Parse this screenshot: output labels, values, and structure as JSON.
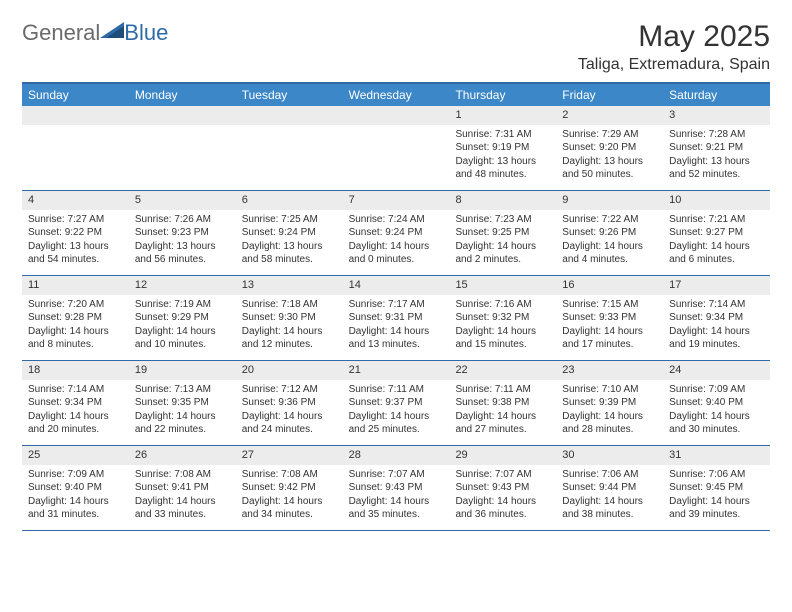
{
  "logo": {
    "general": "General",
    "blue": "Blue"
  },
  "title": "May 2025",
  "location": "Taliga, Extremadura, Spain",
  "colors": {
    "header_bg": "#3b87c8",
    "border": "#2f6aa8",
    "daynum_bg": "#ececec",
    "text": "#333333",
    "logo_gray": "#6b6b6b",
    "logo_blue": "#2f6aa8"
  },
  "daysOfWeek": [
    "Sunday",
    "Monday",
    "Tuesday",
    "Wednesday",
    "Thursday",
    "Friday",
    "Saturday"
  ],
  "weeks": [
    [
      {
        "n": "",
        "sr": "",
        "ss": "",
        "dl1": "",
        "dl2": ""
      },
      {
        "n": "",
        "sr": "",
        "ss": "",
        "dl1": "",
        "dl2": ""
      },
      {
        "n": "",
        "sr": "",
        "ss": "",
        "dl1": "",
        "dl2": ""
      },
      {
        "n": "",
        "sr": "",
        "ss": "",
        "dl1": "",
        "dl2": ""
      },
      {
        "n": "1",
        "sr": "Sunrise: 7:31 AM",
        "ss": "Sunset: 9:19 PM",
        "dl1": "Daylight: 13 hours",
        "dl2": "and 48 minutes."
      },
      {
        "n": "2",
        "sr": "Sunrise: 7:29 AM",
        "ss": "Sunset: 9:20 PM",
        "dl1": "Daylight: 13 hours",
        "dl2": "and 50 minutes."
      },
      {
        "n": "3",
        "sr": "Sunrise: 7:28 AM",
        "ss": "Sunset: 9:21 PM",
        "dl1": "Daylight: 13 hours",
        "dl2": "and 52 minutes."
      }
    ],
    [
      {
        "n": "4",
        "sr": "Sunrise: 7:27 AM",
        "ss": "Sunset: 9:22 PM",
        "dl1": "Daylight: 13 hours",
        "dl2": "and 54 minutes."
      },
      {
        "n": "5",
        "sr": "Sunrise: 7:26 AM",
        "ss": "Sunset: 9:23 PM",
        "dl1": "Daylight: 13 hours",
        "dl2": "and 56 minutes."
      },
      {
        "n": "6",
        "sr": "Sunrise: 7:25 AM",
        "ss": "Sunset: 9:24 PM",
        "dl1": "Daylight: 13 hours",
        "dl2": "and 58 minutes."
      },
      {
        "n": "7",
        "sr": "Sunrise: 7:24 AM",
        "ss": "Sunset: 9:24 PM",
        "dl1": "Daylight: 14 hours",
        "dl2": "and 0 minutes."
      },
      {
        "n": "8",
        "sr": "Sunrise: 7:23 AM",
        "ss": "Sunset: 9:25 PM",
        "dl1": "Daylight: 14 hours",
        "dl2": "and 2 minutes."
      },
      {
        "n": "9",
        "sr": "Sunrise: 7:22 AM",
        "ss": "Sunset: 9:26 PM",
        "dl1": "Daylight: 14 hours",
        "dl2": "and 4 minutes."
      },
      {
        "n": "10",
        "sr": "Sunrise: 7:21 AM",
        "ss": "Sunset: 9:27 PM",
        "dl1": "Daylight: 14 hours",
        "dl2": "and 6 minutes."
      }
    ],
    [
      {
        "n": "11",
        "sr": "Sunrise: 7:20 AM",
        "ss": "Sunset: 9:28 PM",
        "dl1": "Daylight: 14 hours",
        "dl2": "and 8 minutes."
      },
      {
        "n": "12",
        "sr": "Sunrise: 7:19 AM",
        "ss": "Sunset: 9:29 PM",
        "dl1": "Daylight: 14 hours",
        "dl2": "and 10 minutes."
      },
      {
        "n": "13",
        "sr": "Sunrise: 7:18 AM",
        "ss": "Sunset: 9:30 PM",
        "dl1": "Daylight: 14 hours",
        "dl2": "and 12 minutes."
      },
      {
        "n": "14",
        "sr": "Sunrise: 7:17 AM",
        "ss": "Sunset: 9:31 PM",
        "dl1": "Daylight: 14 hours",
        "dl2": "and 13 minutes."
      },
      {
        "n": "15",
        "sr": "Sunrise: 7:16 AM",
        "ss": "Sunset: 9:32 PM",
        "dl1": "Daylight: 14 hours",
        "dl2": "and 15 minutes."
      },
      {
        "n": "16",
        "sr": "Sunrise: 7:15 AM",
        "ss": "Sunset: 9:33 PM",
        "dl1": "Daylight: 14 hours",
        "dl2": "and 17 minutes."
      },
      {
        "n": "17",
        "sr": "Sunrise: 7:14 AM",
        "ss": "Sunset: 9:34 PM",
        "dl1": "Daylight: 14 hours",
        "dl2": "and 19 minutes."
      }
    ],
    [
      {
        "n": "18",
        "sr": "Sunrise: 7:14 AM",
        "ss": "Sunset: 9:34 PM",
        "dl1": "Daylight: 14 hours",
        "dl2": "and 20 minutes."
      },
      {
        "n": "19",
        "sr": "Sunrise: 7:13 AM",
        "ss": "Sunset: 9:35 PM",
        "dl1": "Daylight: 14 hours",
        "dl2": "and 22 minutes."
      },
      {
        "n": "20",
        "sr": "Sunrise: 7:12 AM",
        "ss": "Sunset: 9:36 PM",
        "dl1": "Daylight: 14 hours",
        "dl2": "and 24 minutes."
      },
      {
        "n": "21",
        "sr": "Sunrise: 7:11 AM",
        "ss": "Sunset: 9:37 PM",
        "dl1": "Daylight: 14 hours",
        "dl2": "and 25 minutes."
      },
      {
        "n": "22",
        "sr": "Sunrise: 7:11 AM",
        "ss": "Sunset: 9:38 PM",
        "dl1": "Daylight: 14 hours",
        "dl2": "and 27 minutes."
      },
      {
        "n": "23",
        "sr": "Sunrise: 7:10 AM",
        "ss": "Sunset: 9:39 PM",
        "dl1": "Daylight: 14 hours",
        "dl2": "and 28 minutes."
      },
      {
        "n": "24",
        "sr": "Sunrise: 7:09 AM",
        "ss": "Sunset: 9:40 PM",
        "dl1": "Daylight: 14 hours",
        "dl2": "and 30 minutes."
      }
    ],
    [
      {
        "n": "25",
        "sr": "Sunrise: 7:09 AM",
        "ss": "Sunset: 9:40 PM",
        "dl1": "Daylight: 14 hours",
        "dl2": "and 31 minutes."
      },
      {
        "n": "26",
        "sr": "Sunrise: 7:08 AM",
        "ss": "Sunset: 9:41 PM",
        "dl1": "Daylight: 14 hours",
        "dl2": "and 33 minutes."
      },
      {
        "n": "27",
        "sr": "Sunrise: 7:08 AM",
        "ss": "Sunset: 9:42 PM",
        "dl1": "Daylight: 14 hours",
        "dl2": "and 34 minutes."
      },
      {
        "n": "28",
        "sr": "Sunrise: 7:07 AM",
        "ss": "Sunset: 9:43 PM",
        "dl1": "Daylight: 14 hours",
        "dl2": "and 35 minutes."
      },
      {
        "n": "29",
        "sr": "Sunrise: 7:07 AM",
        "ss": "Sunset: 9:43 PM",
        "dl1": "Daylight: 14 hours",
        "dl2": "and 36 minutes."
      },
      {
        "n": "30",
        "sr": "Sunrise: 7:06 AM",
        "ss": "Sunset: 9:44 PM",
        "dl1": "Daylight: 14 hours",
        "dl2": "and 38 minutes."
      },
      {
        "n": "31",
        "sr": "Sunrise: 7:06 AM",
        "ss": "Sunset: 9:45 PM",
        "dl1": "Daylight: 14 hours",
        "dl2": "and 39 minutes."
      }
    ]
  ]
}
